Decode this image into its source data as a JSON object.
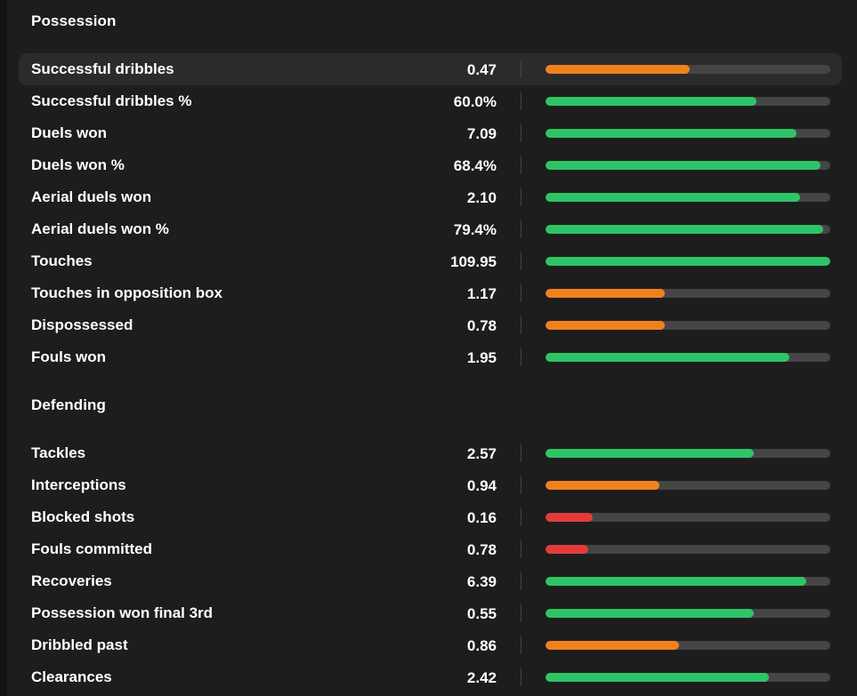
{
  "colors": {
    "good": "#2fc567",
    "average": "#f0821e",
    "poor": "#e23c3c",
    "track": "#454545"
  },
  "sections": [
    {
      "title": "Possession",
      "rows": [
        {
          "label": "Successful dribbles",
          "value": "0.47",
          "percentile": 0.505,
          "color": "average",
          "highlighted": true
        },
        {
          "label": "Successful dribbles %",
          "value": "60.0%",
          "percentile": 0.74,
          "color": "good"
        },
        {
          "label": "Duels won",
          "value": "7.09",
          "percentile": 0.88,
          "color": "good"
        },
        {
          "label": "Duels won %",
          "value": "68.4%",
          "percentile": 0.965,
          "color": "good"
        },
        {
          "label": "Aerial duels won",
          "value": "2.10",
          "percentile": 0.895,
          "color": "good"
        },
        {
          "label": "Aerial duels won %",
          "value": "79.4%",
          "percentile": 0.975,
          "color": "good"
        },
        {
          "label": "Touches",
          "value": "109.95",
          "percentile": 1.0,
          "color": "good"
        },
        {
          "label": "Touches in opposition box",
          "value": "1.17",
          "percentile": 0.42,
          "color": "average"
        },
        {
          "label": "Dispossessed",
          "value": "0.78",
          "percentile": 0.42,
          "color": "average"
        },
        {
          "label": "Fouls won",
          "value": "1.95",
          "percentile": 0.855,
          "color": "good"
        }
      ]
    },
    {
      "title": "Defending",
      "rows": [
        {
          "label": "Tackles",
          "value": "2.57",
          "percentile": 0.73,
          "color": "good"
        },
        {
          "label": "Interceptions",
          "value": "0.94",
          "percentile": 0.4,
          "color": "average"
        },
        {
          "label": "Blocked shots",
          "value": "0.16",
          "percentile": 0.165,
          "color": "poor"
        },
        {
          "label": "Fouls committed",
          "value": "0.78",
          "percentile": 0.15,
          "color": "poor"
        },
        {
          "label": "Recoveries",
          "value": "6.39",
          "percentile": 0.915,
          "color": "good"
        },
        {
          "label": "Possession won final 3rd",
          "value": "0.55",
          "percentile": 0.73,
          "color": "good"
        },
        {
          "label": "Dribbled past",
          "value": "0.86",
          "percentile": 0.47,
          "color": "average"
        },
        {
          "label": "Clearances",
          "value": "2.42",
          "percentile": 0.785,
          "color": "good"
        }
      ]
    }
  ]
}
